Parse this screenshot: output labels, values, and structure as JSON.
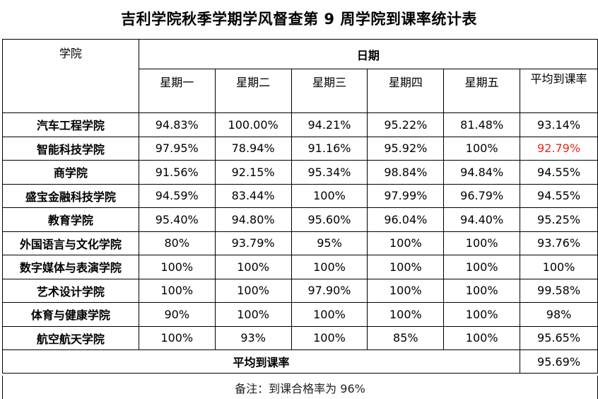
{
  "title": "吉利学院秋季学期学风督查第 9 周学院到课率统计表",
  "header": {
    "college_label": "学院",
    "date_label": "日期",
    "days": [
      "星期一",
      "星期二",
      "星期三",
      "星期四",
      "星期五"
    ],
    "average_label": "平均到课率"
  },
  "rows": [
    {
      "college": "汽车工程学院",
      "values": [
        "94.83%",
        "100.00%",
        "94.21%",
        "95.22%",
        "81.48%"
      ],
      "average": "93.14%"
    },
    {
      "college": "智能科技学院",
      "values": [
        "97.95%",
        "78.94%",
        "91.16%",
        "95.92%",
        "100%"
      ],
      "average": "92.79%"
    },
    {
      "college": "商学院",
      "values": [
        "91.56%",
        "92.15%",
        "95.34%",
        "98.84%",
        "94.84%"
      ],
      "average": "94.55%"
    },
    {
      "college": "盛宝金融科技学院",
      "values": [
        "94.59%",
        "83.44%",
        "100%",
        "97.99%",
        "96.79%"
      ],
      "average": "94.55%"
    },
    {
      "college": "教育学院",
      "values": [
        "95.40%",
        "94.80%",
        "95.60%",
        "96.04%",
        "94.40%"
      ],
      "average": "95.25%"
    },
    {
      "college": "外国语言与文化学院",
      "values": [
        "80%",
        "93.79%",
        "95%",
        "100%",
        "100%"
      ],
      "average": "93.76%"
    },
    {
      "college": "数字媒体与表演学院",
      "values": [
        "100%",
        "100%",
        "100%",
        "100%",
        "100%"
      ],
      "average": "100%"
    },
    {
      "college": "艺术设计学院",
      "values": [
        "100%",
        "100%",
        "97.90%",
        "100%",
        "100%"
      ],
      "average": "99.58%"
    },
    {
      "college": "体育与健康学院",
      "values": [
        "90%",
        "100%",
        "100%",
        "100%",
        "100%"
      ],
      "average": "98%"
    },
    {
      "college": "航空航天学院",
      "values": [
        "100%",
        "93%",
        "100%",
        "85%",
        "100%"
      ],
      "average": "95.65%"
    }
  ],
  "highlight_color": "#e8281e",
  "highlighted_average_row": 1,
  "overall": {
    "label": "平均到课率",
    "value": "95.69%"
  },
  "note": "备注：到课合格率为 96%"
}
